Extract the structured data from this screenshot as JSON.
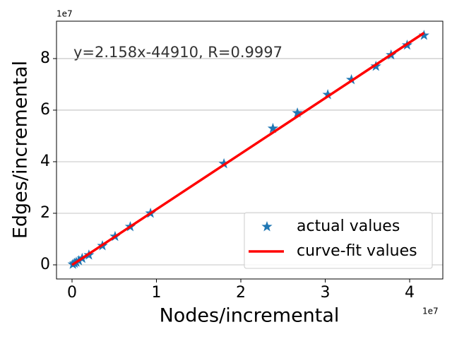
{
  "chart_data": {
    "type": "scatter",
    "xlabel": "Nodes/incremental",
    "ylabel": "Edges/incremental",
    "x_offset_label": "1e7",
    "y_offset_label": "1e7",
    "annotation": "y=2.158x-44910, R=0.9997",
    "xlim": [
      -0.184,
      4.393
    ],
    "ylim": [
      -0.548,
      9.45
    ],
    "xticks": [
      0,
      1,
      2,
      3,
      4
    ],
    "yticks": [
      0,
      2,
      4,
      6,
      8
    ],
    "grid": "y",
    "legend": "lower right",
    "series": [
      {
        "name": "actual values",
        "type": "scatter",
        "color": "#1f77b4",
        "x": [
          0.01,
          0.03,
          0.05,
          0.08,
          0.12,
          0.2,
          0.36,
          0.51,
          0.69,
          0.93,
          1.8,
          2.38,
          2.67,
          3.03,
          3.31,
          3.6,
          3.78,
          3.97,
          4.17
        ],
        "values": [
          0.02,
          0.06,
          0.1,
          0.16,
          0.25,
          0.38,
          0.74,
          1.1,
          1.48,
          2.0,
          3.92,
          5.29,
          5.89,
          6.6,
          7.18,
          7.7,
          8.14,
          8.52,
          8.9
        ]
      },
      {
        "name": "curve-fit values",
        "type": "line",
        "color": "#ff0000",
        "x": [
          0,
          4.17
        ],
        "values": [
          -0.0045,
          8.994
        ]
      }
    ]
  }
}
